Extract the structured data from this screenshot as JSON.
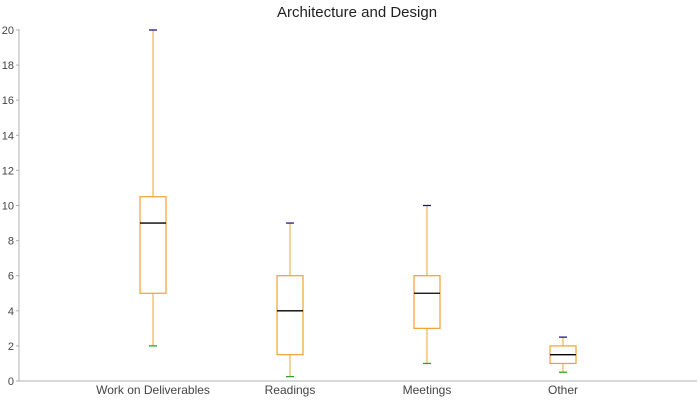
{
  "chart_data": {
    "type": "boxplot",
    "title": "Architecture and Design",
    "xlabel": "",
    "ylabel": "",
    "ylim": [
      0,
      20
    ],
    "yticks": [
      "0",
      "2",
      "4",
      "6",
      "8",
      "10",
      "12",
      "14",
      "16",
      "18",
      "20"
    ],
    "categories": [
      "Work on Deliverables",
      "Readings",
      "Meetings",
      "Other"
    ],
    "boxes": [
      {
        "min": 2,
        "q1": 5,
        "median": 9,
        "q3": 10.5,
        "max": 20
      },
      {
        "min": 0.25,
        "q1": 1.5,
        "median": 4,
        "q3": 6,
        "max": 9
      },
      {
        "min": 1,
        "q1": 3,
        "median": 5,
        "q3": 6,
        "max": 10
      },
      {
        "min": 0.5,
        "q1": 1,
        "median": 1.5,
        "q3": 2,
        "max": 2.5
      }
    ],
    "grid": false,
    "colors": {
      "box": "#f0a030",
      "median": "#000000",
      "max_cap": "#1a1a8c",
      "min_cap": "#33a02c",
      "axis": "#b0b0b0"
    }
  }
}
